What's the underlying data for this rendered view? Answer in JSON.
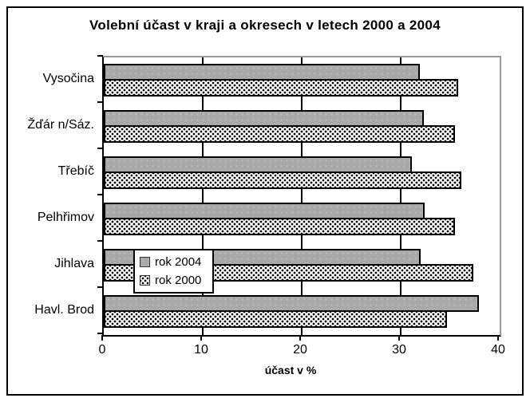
{
  "title": "Volební účast v kraji a okresech v letech 2000 a 2004",
  "chart_data": {
    "type": "bar",
    "orientation": "horizontal",
    "title": "Volební účast v kraji a okresech v letech 2000 a 2004",
    "categories": [
      "Vysočina",
      "Žďár n/Sáz.",
      "Třebíč",
      "Pelhřimov",
      "Jihlava",
      "Havl. Brod"
    ],
    "series": [
      {
        "name": "rok 2004",
        "style": "solid-gray",
        "color": "#a9a9a9",
        "values": [
          31.9,
          32.3,
          31.1,
          32.4,
          32.0,
          37.9
        ]
      },
      {
        "name": "rok 2000",
        "style": "dotted-pattern",
        "color": "#000000",
        "values": [
          35.8,
          35.5,
          36.1,
          35.5,
          37.3,
          34.7
        ]
      }
    ],
    "xlabel": "účast v %",
    "xlim": [
      0,
      40
    ],
    "xticks": [
      0,
      10,
      20,
      30,
      40
    ],
    "grid": true,
    "legend": {
      "entries": [
        "rok 2004",
        "rok 2000"
      ],
      "position": "inside-lower-left"
    }
  },
  "colors": {
    "bar_fill": "#a9a9a9",
    "bar_border": "#000000",
    "plot_border_gray": "#999999",
    "axis": "#000000",
    "background": "#ffffff"
  }
}
